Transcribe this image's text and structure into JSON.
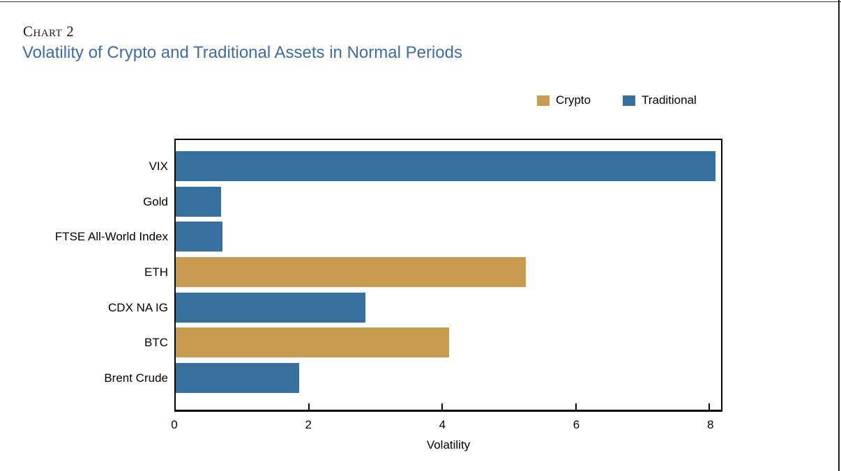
{
  "page": {
    "kicker": "Chart 2",
    "title": "Volatility of Crypto and Traditional Assets in Normal Periods"
  },
  "colors": {
    "crypto": "#C89B4E",
    "traditional": "#36709E",
    "title_blue": "#3E6CA6",
    "axis": "#000000",
    "page_rule": "#1b1b1b"
  },
  "chart_data": {
    "type": "bar",
    "orientation": "horizontal",
    "title": "Volatility of Crypto and Traditional Assets in Normal Periods",
    "categories": [
      "VIX",
      "Gold",
      "FTSE All-World Index",
      "ETH",
      "CDX NA IG",
      "BTC",
      "Brent Crude"
    ],
    "values": [
      8.1,
      0.68,
      0.7,
      5.25,
      2.85,
      4.1,
      1.85
    ],
    "series_of_category": [
      "Traditional",
      "Traditional",
      "Traditional",
      "Crypto",
      "Traditional",
      "Crypto",
      "Traditional"
    ],
    "legend": [
      {
        "name": "Crypto",
        "color": "#C89B4E"
      },
      {
        "name": "Traditional",
        "color": "#36709E"
      }
    ],
    "legend_position": "top-right",
    "xlabel": "Volatility",
    "xlim": [
      0,
      8.18
    ],
    "xticks": [
      0,
      2,
      4,
      6,
      8
    ],
    "grid": false
  }
}
